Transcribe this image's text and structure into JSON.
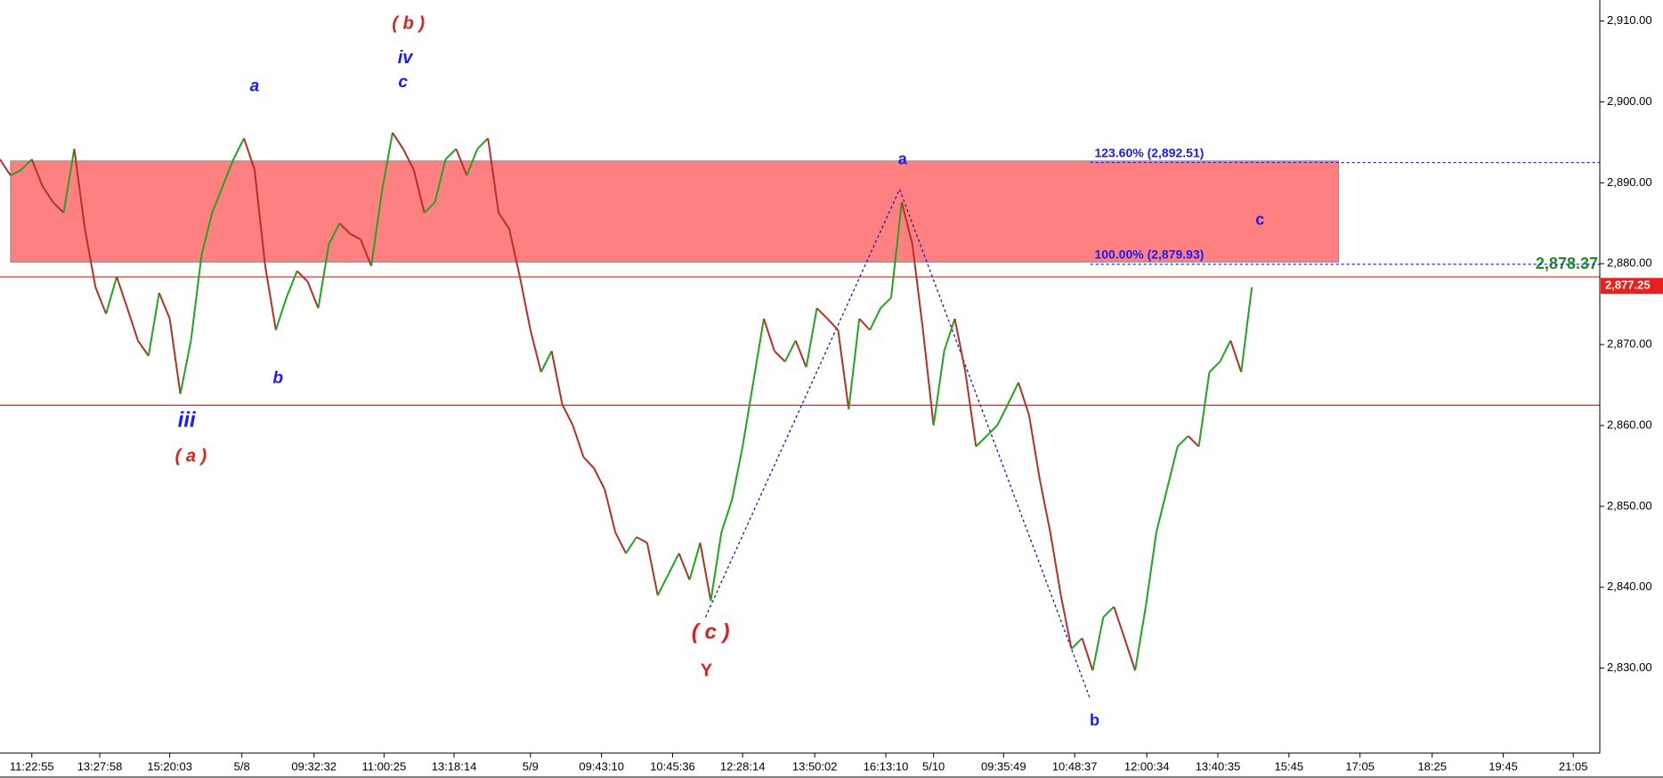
{
  "chart_data": {
    "type": "price-line",
    "x": [
      0,
      2,
      4,
      6,
      8,
      10,
      12,
      14,
      16,
      18,
      20,
      22,
      24,
      26,
      28,
      30,
      32,
      34,
      36,
      38,
      40,
      42,
      44,
      46,
      48,
      50,
      52,
      54,
      56,
      58,
      60,
      62,
      64,
      66,
      68,
      70,
      72,
      74,
      76,
      78,
      80,
      82,
      84,
      86,
      88,
      90,
      92,
      94,
      96,
      98,
      100,
      102,
      104,
      106,
      108,
      110,
      112,
      114,
      116,
      118,
      120,
      122,
      124,
      126,
      128,
      130,
      132,
      134,
      136,
      138,
      140,
      142,
      144,
      146,
      148,
      150,
      152,
      154,
      156,
      158,
      160,
      162,
      164,
      166,
      168,
      170,
      172,
      174,
      176,
      178,
      180,
      182,
      184,
      186,
      188,
      190,
      192,
      194,
      196,
      198,
      200,
      202,
      204,
      206,
      208,
      210,
      212,
      214,
      216,
      218,
      220,
      222,
      224,
      226,
      228,
      230,
      232,
      234,
      236
    ],
    "series": [
      {
        "up_color": "#1fa51f",
        "down_color": "#b5302a",
        "values": [
          2892.9,
          2890.9,
          2891.6,
          2892.9,
          2889.6,
          2887.6,
          2886.3,
          2894.2,
          2884.3,
          2877.1,
          2873.8,
          2878.4,
          2874.5,
          2870.5,
          2868.6,
          2876.4,
          2873.2,
          2863.9,
          2870.5,
          2881.1,
          2886.3,
          2889.6,
          2892.9,
          2895.5,
          2891.6,
          2879.7,
          2871.8,
          2875.8,
          2879.1,
          2877.8,
          2874.5,
          2882.4,
          2885.0,
          2883.7,
          2883.0,
          2879.7,
          2888.9,
          2896.2,
          2894.2,
          2891.6,
          2886.3,
          2887.6,
          2892.9,
          2894.2,
          2890.9,
          2894.2,
          2895.5,
          2886.3,
          2884.3,
          2878.4,
          2871.8,
          2866.6,
          2869.2,
          2862.6,
          2860.0,
          2856.1,
          2854.7,
          2852.1,
          2846.8,
          2844.2,
          2846.2,
          2845.5,
          2839.0,
          2841.6,
          2844.2,
          2840.9,
          2845.5,
          2838.3,
          2846.8,
          2850.8,
          2857.4,
          2865.3,
          2873.2,
          2869.2,
          2867.9,
          2870.5,
          2867.2,
          2874.5,
          2873.2,
          2871.8,
          2862.0,
          2873.2,
          2871.8,
          2874.5,
          2875.8,
          2887.6,
          2882.4,
          2871.8,
          2860.0,
          2869.2,
          2873.2,
          2866.6,
          2857.4,
          2858.7,
          2860.0,
          2862.6,
          2865.3,
          2861.3,
          2853.4,
          2846.8,
          2839.0,
          2832.4,
          2833.7,
          2829.7,
          2836.3,
          2837.6,
          2833.7,
          2829.7,
          2837.6,
          2846.8,
          2852.1,
          2857.4,
          2858.7,
          2857.4,
          2866.6,
          2867.9,
          2870.5,
          2866.6,
          2877.1
        ]
      }
    ],
    "xlim": [
      0,
      301.6
    ],
    "ylim": [
      2819.5,
      2912.6
    ],
    "yticks": [
      {
        "value": 2830,
        "label": "2,830.00"
      },
      {
        "value": 2840,
        "label": "2,840.00"
      },
      {
        "value": 2850,
        "label": "2,850.00"
      },
      {
        "value": 2860,
        "label": "2,860.00"
      },
      {
        "value": 2870,
        "label": "2,870.00"
      },
      {
        "value": 2880,
        "label": "2,880.00"
      },
      {
        "value": 2890,
        "label": "2,890.00"
      },
      {
        "value": 2900,
        "label": "2,900.00"
      },
      {
        "value": 2910,
        "label": "2,910.00"
      }
    ],
    "xticks": [
      {
        "value": 6,
        "label": "11:22:55"
      },
      {
        "value": 18.8,
        "label": "13:27:58"
      },
      {
        "value": 32,
        "label": "15:20:03"
      },
      {
        "value": 45.6,
        "label": "5/8"
      },
      {
        "value": 59.2,
        "label": "09:32:32"
      },
      {
        "value": 72.4,
        "label": "11:00:25"
      },
      {
        "value": 85.6,
        "label": "13:18:14"
      },
      {
        "value": 100,
        "label": "5/9"
      },
      {
        "value": 113.4,
        "label": "09:43:10"
      },
      {
        "value": 126.8,
        "label": "10:45:36"
      },
      {
        "value": 140,
        "label": "12:28:14"
      },
      {
        "value": 153.6,
        "label": "13:50:02"
      },
      {
        "value": 167,
        "label": "16:13:10"
      },
      {
        "value": 176,
        "label": "5/10"
      },
      {
        "value": 189.2,
        "label": "09:35:49"
      },
      {
        "value": 202.6,
        "label": "10:48:37"
      },
      {
        "value": 216.2,
        "label": "12:00:34"
      },
      {
        "value": 229.6,
        "label": "13:40:35"
      },
      {
        "value": 243,
        "label": "15:45"
      },
      {
        "value": 256.4,
        "label": "17:05"
      },
      {
        "value": 270,
        "label": "18:25"
      },
      {
        "value": 283.4,
        "label": "19:45"
      },
      {
        "value": 296.6,
        "label": "21:05"
      }
    ],
    "zone": {
      "low": 2880.2,
      "high": 2892.7,
      "color": "#ff8080"
    },
    "levels": [
      {
        "value": 2892.51,
        "label": "123.60% (2,892.51)"
      },
      {
        "value": 2879.93,
        "label": "100.00% (2,879.93)"
      }
    ],
    "level_color": "#1a1aff",
    "hlines": [
      {
        "value": 2878.37,
        "label": "2,878.37",
        "color": "#e02020",
        "label_color": "#1e8c1e"
      },
      {
        "value": 2862.5,
        "color": "#e02020"
      }
    ],
    "last_price": {
      "value": 2877.25,
      "label": "2,877.25",
      "color": "#e82020"
    },
    "pattern": {
      "x": [
        133,
        169.6,
        205.4
      ],
      "values": [
        2836.3,
        2889.2,
        2826.4
      ],
      "color": "#1a1aa0"
    },
    "annotations": [
      {
        "text": "( b )",
        "color": "#e02020"
      },
      {
        "text": "iv",
        "color": "#1a1aff"
      },
      {
        "text": "c",
        "color": "#1a1aff"
      },
      {
        "text": "a",
        "color": "#1a1aff"
      },
      {
        "text": "b",
        "color": "#1a1aff"
      },
      {
        "text": "iii",
        "color": "#1a1aff"
      },
      {
        "text": "( a )",
        "color": "#e02020"
      },
      {
        "text": "a",
        "color": "#1a1aff"
      },
      {
        "text": "c",
        "color": "#1a1aff"
      },
      {
        "text": "( c )",
        "color": "#e02020"
      },
      {
        "text": "Y",
        "color": "#e02020"
      },
      {
        "text": "b",
        "color": "#1a1aff"
      }
    ]
  }
}
